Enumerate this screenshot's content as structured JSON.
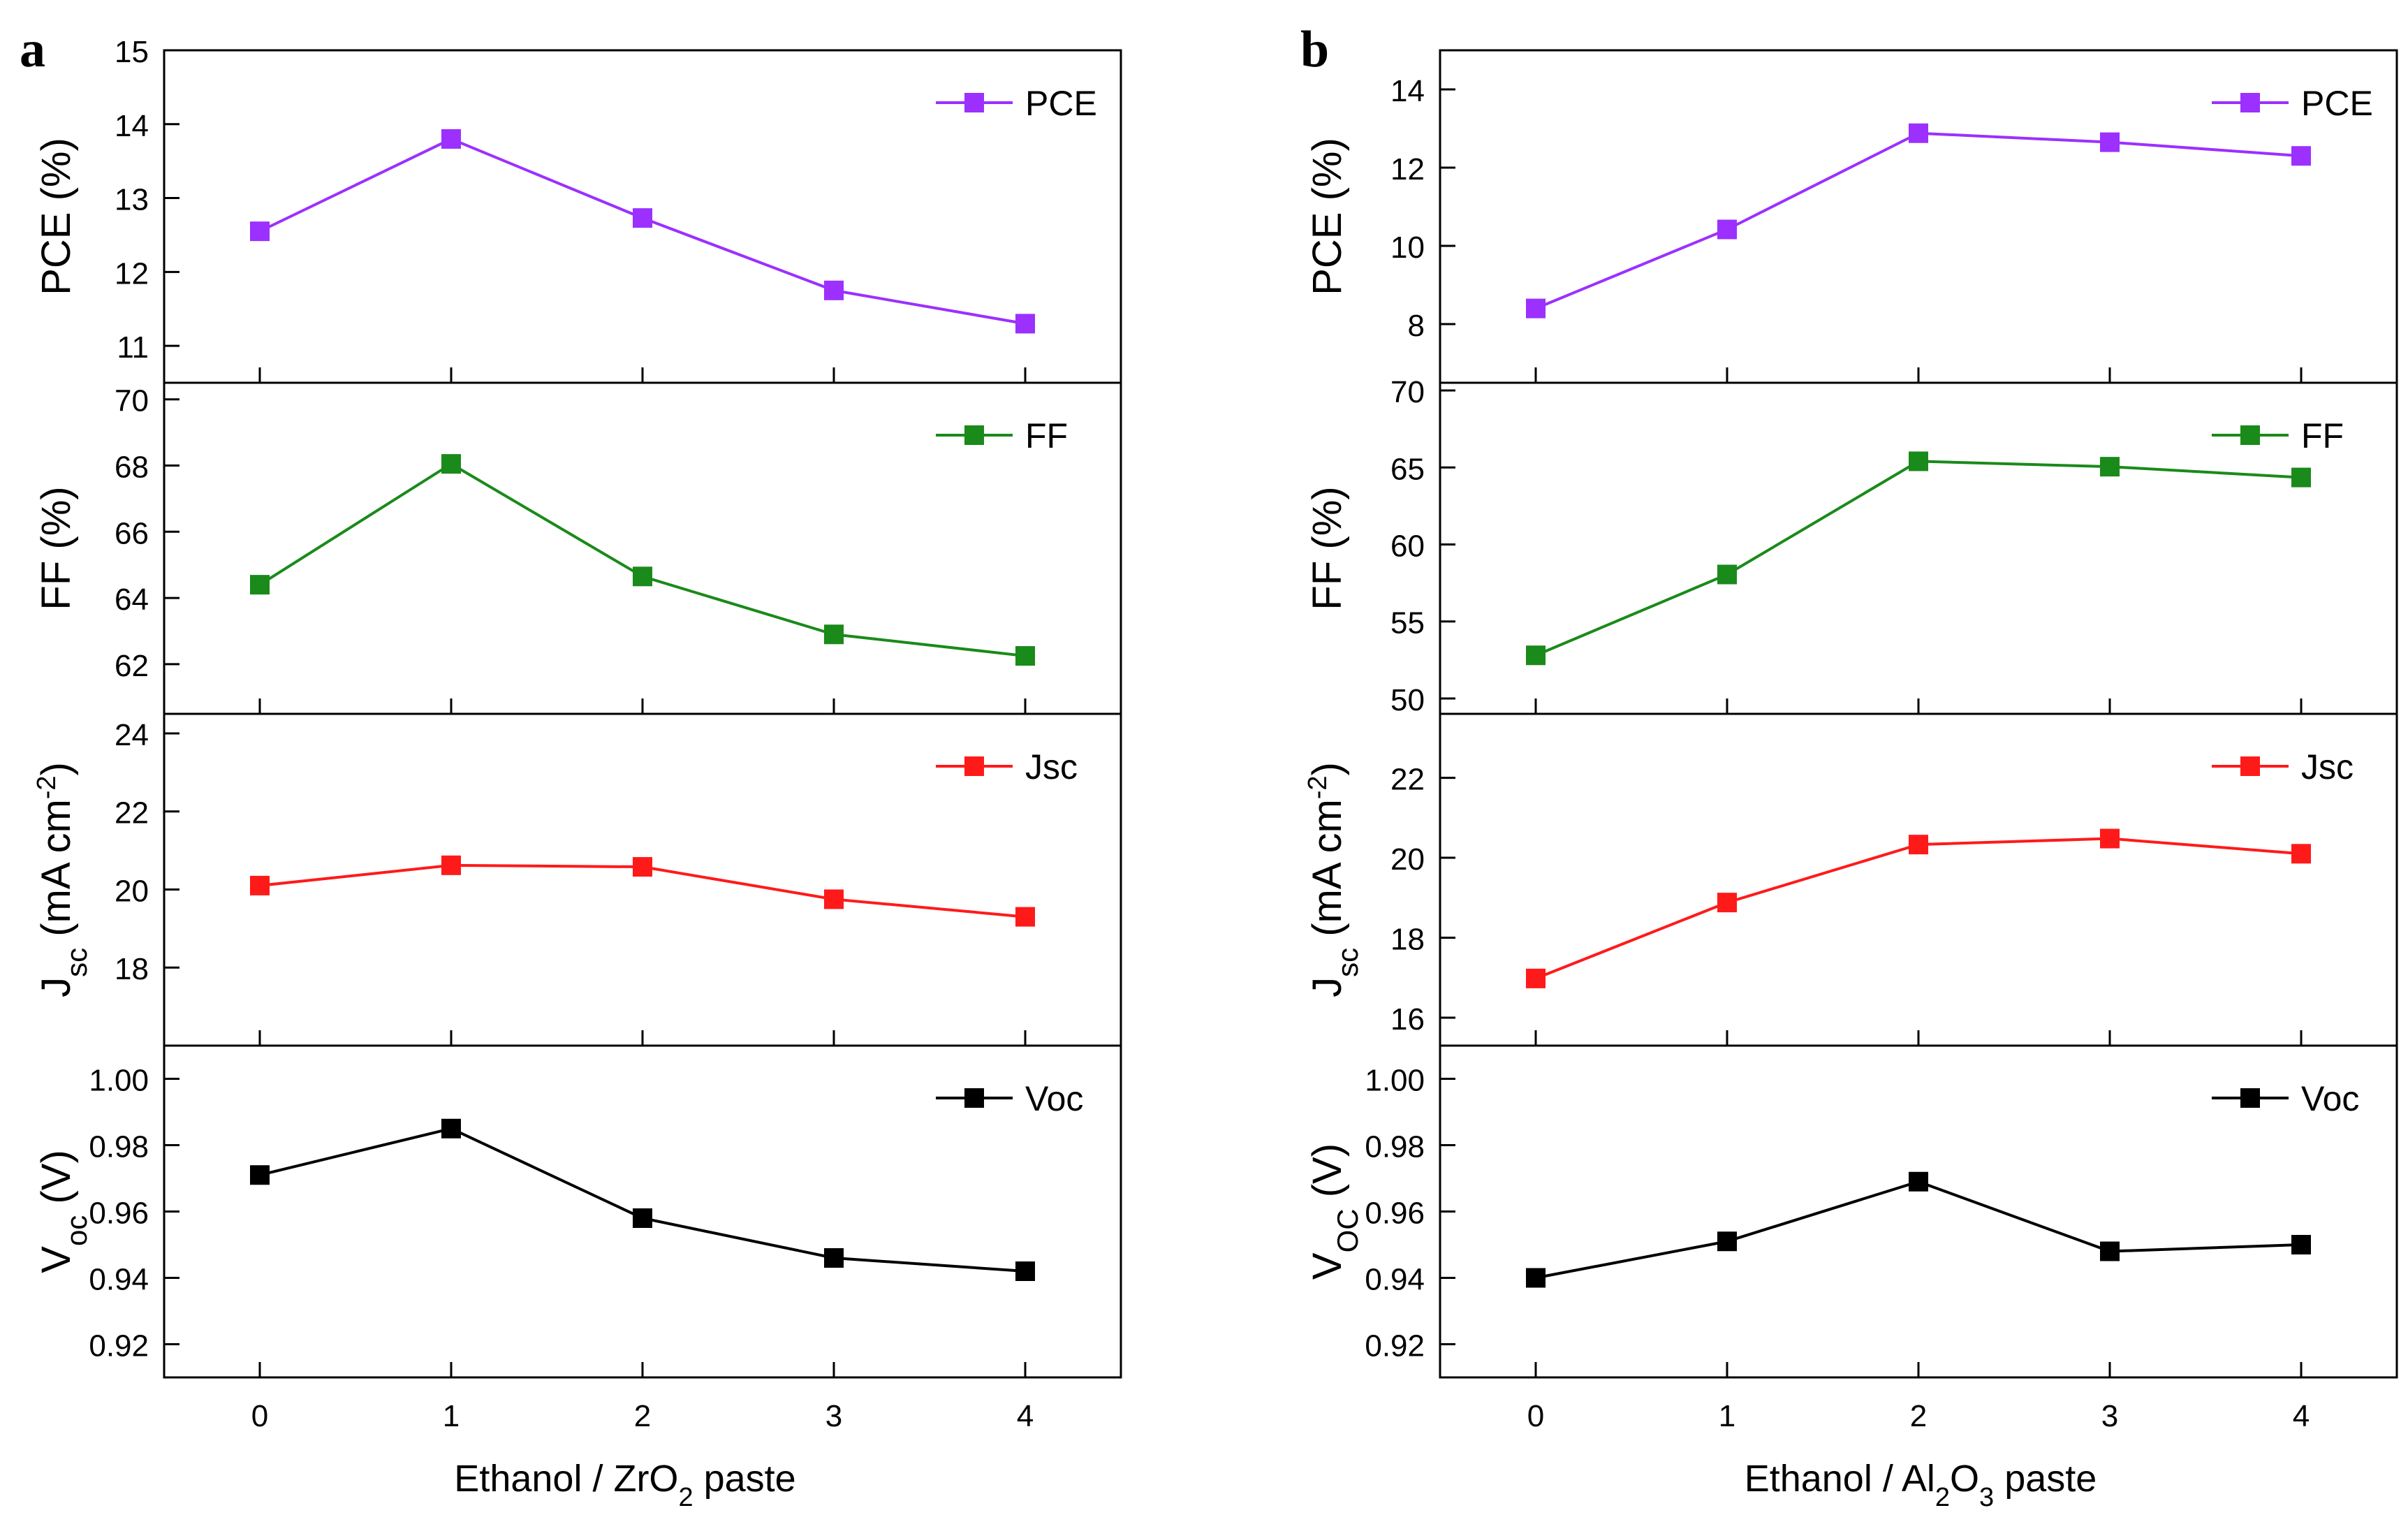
{
  "chart_data": [
    {
      "type": "line",
      "panel_label": "a",
      "xlabel": {
        "main": "Ethanol / ZrO",
        "sub": "2",
        "suffix": " paste"
      },
      "xlim": [
        -0.5,
        4.5
      ],
      "x": [
        0,
        1,
        2,
        3,
        4
      ],
      "xticks": [
        "0",
        "1",
        "2",
        "3",
        "4"
      ],
      "grid": false,
      "subplots": [
        {
          "series_name": "PCE",
          "legend_position": "top-right",
          "color": "#9b30ff",
          "ylabel": {
            "main": "PCE (%)",
            "sub": "",
            "suffix": ""
          },
          "ylim": [
            10.5,
            15
          ],
          "yticks": [
            "11",
            "12",
            "13",
            "14",
            "15"
          ],
          "yticks_values": [
            11,
            12,
            13,
            14,
            15
          ],
          "values": [
            12.55,
            13.8,
            12.73,
            11.75,
            11.3
          ]
        },
        {
          "series_name": "FF",
          "legend_position": "top-right",
          "color": "#1a8a1a",
          "ylabel": {
            "main": "FF (%)",
            "sub": "",
            "suffix": ""
          },
          "ylim": [
            60.5,
            70.5
          ],
          "yticks": [
            "62",
            "64",
            "66",
            "68",
            "70"
          ],
          "yticks_values": [
            62,
            64,
            66,
            68,
            70
          ],
          "values": [
            64.4,
            68.05,
            64.65,
            62.9,
            62.25
          ]
        },
        {
          "series_name": "Jsc",
          "legend_position": "top-right",
          "color": "#ff1a1a",
          "ylabel": {
            "main": "J",
            "sub": "sc",
            "suffix": " (mA cm",
            "sup": "-2",
            "suffix2": ")"
          },
          "ylim": [
            16,
            24.5
          ],
          "yticks": [
            "18",
            "20",
            "22",
            "24"
          ],
          "yticks_values": [
            18,
            20,
            22,
            24
          ],
          "values": [
            20.1,
            20.62,
            20.58,
            19.75,
            19.3
          ]
        },
        {
          "series_name": "Voc",
          "legend_position": "top-right",
          "color": "#000000",
          "ylabel": {
            "main": "V",
            "sub": "oc",
            "suffix": " (V)"
          },
          "ylim": [
            0.91,
            1.01
          ],
          "yticks": [
            "0.92",
            "0.94",
            "0.96",
            "0.98",
            "1.00"
          ],
          "yticks_values": [
            0.92,
            0.94,
            0.96,
            0.98,
            1.0
          ],
          "values": [
            0.971,
            0.985,
            0.958,
            0.946,
            0.942
          ]
        }
      ]
    },
    {
      "type": "line",
      "panel_label": "b",
      "xlabel": {
        "main": "Ethanol / Al",
        "sub": "2",
        "mid": "O",
        "sub2": "3",
        "suffix": " paste"
      },
      "xlim": [
        -0.5,
        4.5
      ],
      "x": [
        0,
        1,
        2,
        3,
        4
      ],
      "xticks": [
        "0",
        "1",
        "2",
        "3",
        "4"
      ],
      "grid": false,
      "subplots": [
        {
          "series_name": "PCE",
          "legend_position": "top-right",
          "color": "#9b30ff",
          "ylabel": {
            "main": "PCE (%)",
            "sub": "",
            "suffix": ""
          },
          "ylim": [
            6.5,
            15
          ],
          "yticks": [
            "8",
            "10",
            "12",
            "14"
          ],
          "yticks_values": [
            8,
            10,
            12,
            14
          ],
          "values": [
            8.4,
            10.42,
            12.88,
            12.65,
            12.3
          ]
        },
        {
          "series_name": "FF",
          "legend_position": "top-right",
          "color": "#1a8a1a",
          "ylabel": {
            "main": "FF (%)",
            "sub": "",
            "suffix": ""
          },
          "ylim": [
            49,
            70.5
          ],
          "yticks": [
            "50",
            "55",
            "60",
            "65",
            "70"
          ],
          "yticks_values": [
            50,
            55,
            60,
            65,
            70
          ],
          "values": [
            52.8,
            58.05,
            65.4,
            65.05,
            64.35
          ]
        },
        {
          "series_name": "Jsc",
          "legend_position": "top-right",
          "color": "#ff1a1a",
          "ylabel": {
            "main": "J",
            "sub": "sc",
            "suffix": " (mA cm",
            "sup": "-2",
            "suffix2": ")"
          },
          "ylim": [
            15.3,
            23.6
          ],
          "yticks": [
            "16",
            "18",
            "20",
            "22"
          ],
          "yticks_values": [
            16,
            18,
            20,
            22
          ],
          "values": [
            16.98,
            18.88,
            20.33,
            20.48,
            20.1
          ]
        },
        {
          "series_name": "Voc",
          "legend_position": "top-right",
          "color": "#000000",
          "ylabel": {
            "main": "V",
            "sub": "OC",
            "suffix": " (V)"
          },
          "ylim": [
            0.91,
            1.01
          ],
          "yticks": [
            "0.92",
            "0.94",
            "0.96",
            "0.98",
            "1.00"
          ],
          "yticks_values": [
            0.92,
            0.94,
            0.96,
            0.98,
            1.0
          ],
          "values": [
            0.94,
            0.951,
            0.969,
            0.948,
            0.95
          ]
        }
      ]
    }
  ]
}
